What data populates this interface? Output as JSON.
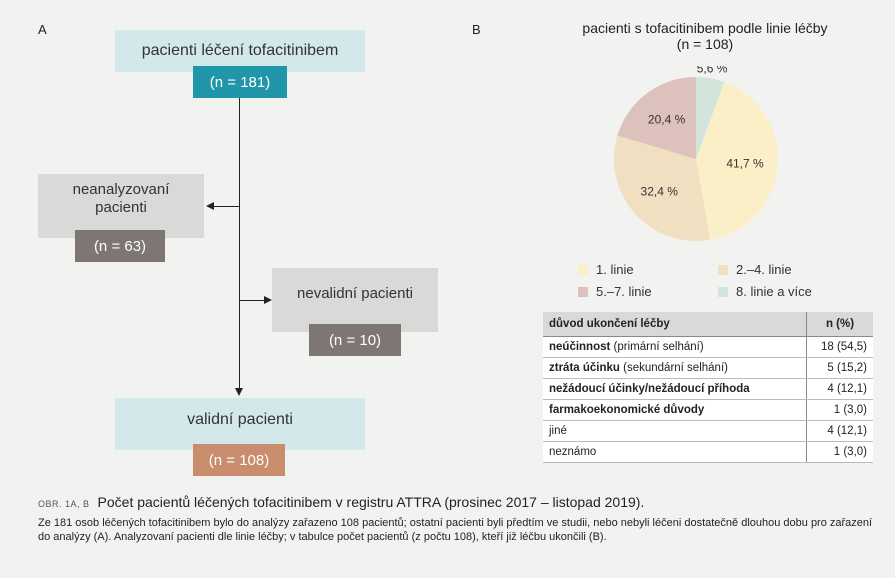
{
  "panel_a": {
    "letter": "A",
    "treated": {
      "label": "pacienti léčení tofacitinibem",
      "count": "(n = 181)"
    },
    "not_analyzed": {
      "label": "neanalyzovaní pacienti",
      "count": "(n = 63)"
    },
    "invalid": {
      "label": "nevalidní pacienti",
      "count": "(n = 10)"
    },
    "valid": {
      "label": "validní pacienti",
      "count": "(n = 108)"
    }
  },
  "panel_b": {
    "letter": "B",
    "title": "pacienti s tofacitinibem podle linie léčby",
    "subtitle": "(n = 108)"
  },
  "colors": {
    "teal_dark": "#1f97a8",
    "teal_light": "#d3e8ea",
    "grey_dark": "#7d7672",
    "grey_light": "#d9d9d7",
    "orange": "#c98d6e",
    "pie_1": "#fbefc8",
    "pie_2": "#f1dfc2",
    "pie_3": "#ddc1bd",
    "pie_4": "#d3e4dc"
  },
  "chart_data": {
    "type": "pie",
    "categories": [
      "1. linie",
      "2.–4. linie",
      "5.–7. linie",
      "8. linie a více"
    ],
    "values": [
      41.7,
      32.4,
      20.4,
      5.6
    ],
    "labels": [
      "41,7 %",
      "32,4 %",
      "20,4 %",
      "5,6 %"
    ],
    "title": "pacienti s tofacitinibem podle linie léčby",
    "subtitle": "(n = 108)",
    "legend_placement": "bottom"
  },
  "table": {
    "headers": [
      "důvod ukončení léčby",
      "n (%)"
    ],
    "rows": [
      {
        "bold": "neúčinnost",
        "rest": " (primární selhání)",
        "n": "18 (54,5)"
      },
      {
        "bold": "ztráta účinku",
        "rest": " (sekundární selhání)",
        "n": "5 (15,2)"
      },
      {
        "bold": "nežádoucí účinky/nežádoucí příhoda",
        "rest": "",
        "n": "4 (12,1)"
      },
      {
        "bold": "farmakoekonomické důvody",
        "rest": "",
        "n": "1 (3,0)"
      },
      {
        "bold": "",
        "rest": "jiné",
        "n": "4 (12,1)"
      },
      {
        "bold": "",
        "rest": "neznámo",
        "n": "1 (3,0)"
      }
    ]
  },
  "caption": {
    "tag": "OBR. 1A, B",
    "title": "Počet pacientů léčených tofacitinibem v registru ATTRA (prosinec 2017 – listopad 2019).",
    "body": "Ze 181 osob léčených tofacitinibem bylo do analýzy zařazeno 108 pacientů; ostatní pacienti byli předtím ve studii, nebo nebyli léčeni dostatečně dlouhou dobu pro zařazení do analýzy (A). Analyzovaní pacienti dle linie léčby; v tabulce počet pacientů (z počtu 108), kteří již léčbu ukončili (B)."
  }
}
